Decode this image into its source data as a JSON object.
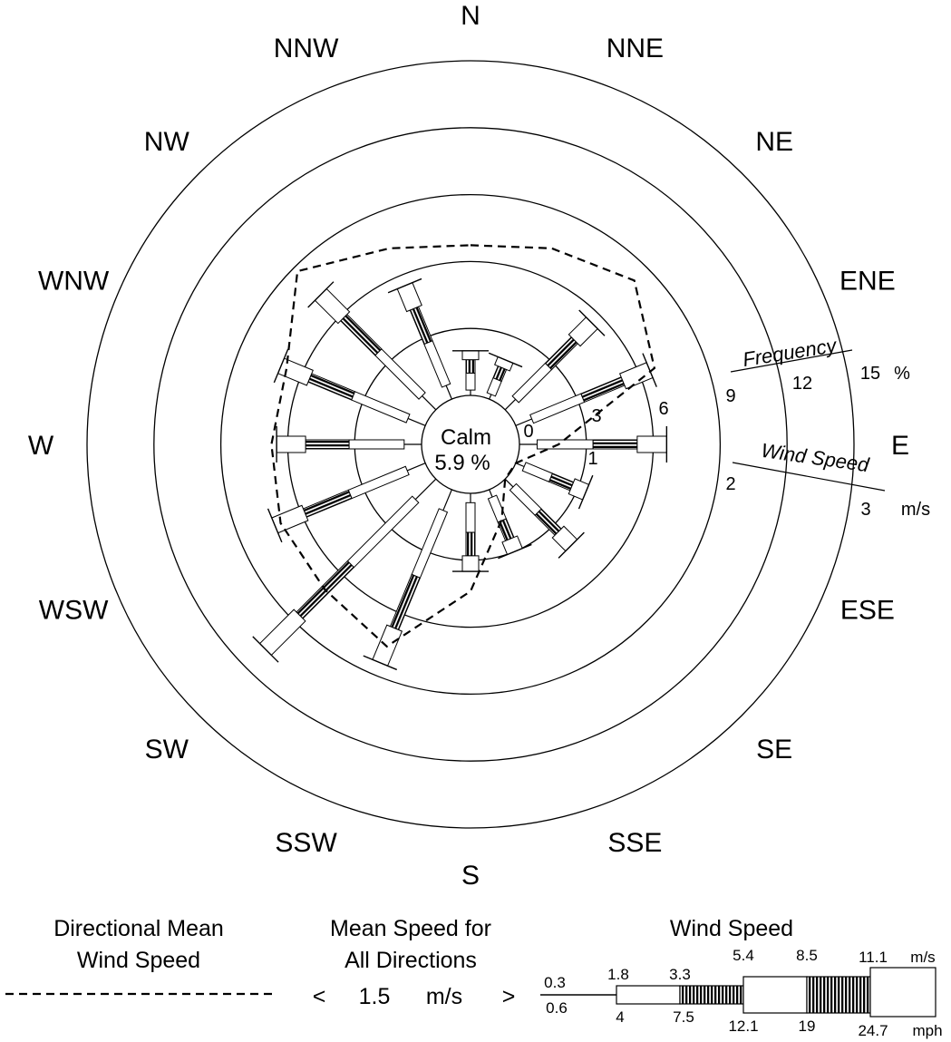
{
  "chart_data": {
    "type": "wind_rose",
    "directions": [
      "N",
      "NNE",
      "NE",
      "ENE",
      "E",
      "ESE",
      "SE",
      "SSE",
      "S",
      "SSW",
      "SW",
      "WSW",
      "W",
      "WNW",
      "NW",
      "NNW"
    ],
    "calm": {
      "label": "Calm",
      "value": "5.9 %"
    },
    "frequency_axis": {
      "title": "Frequency",
      "ticks": [
        "3",
        "6",
        "9",
        "12",
        "15"
      ],
      "unit": "%"
    },
    "wind_speed_axis": {
      "title": "Wind Speed",
      "ticks": [
        "0",
        "1",
        "2",
        "3"
      ],
      "unit": "m/s"
    },
    "frequency_percent": [
      2.0,
      1.9,
      5.5,
      6.5,
      6.6,
      3.4,
      4.2,
      3.0,
      3.5,
      8.4,
      10.8,
      7.3,
      6.5,
      7.0,
      7.3,
      5.5
    ],
    "mean_speed_m_s": [
      2.3,
      2.5,
      2.8,
      2.3,
      0.6,
      0.0,
      0.0,
      0.5,
      1.5,
      2.6,
      2.4,
      2.4,
      2.3,
      2.3,
      3.0,
      2.5
    ],
    "speed_classes_m_s": [
      0.3,
      1.8,
      3.3,
      5.4,
      8.5,
      11.1
    ],
    "speed_classes_mph": [
      0.6,
      4,
      7.5,
      12.1,
      19,
      24.7
    ],
    "legend": {
      "mean_line_title_1": "Directional Mean",
      "mean_line_title_2": "Wind Speed",
      "mean_all_title_1": "Mean Speed for",
      "mean_all_title_2": "All Directions",
      "mean_all_lt": "<",
      "mean_all_value": "1.5",
      "mean_all_unit": "m/s",
      "mean_all_gt": ">",
      "bars_title": "Wind Speed",
      "ms_labels": [
        "0.3",
        "1.8",
        "3.3",
        "5.4",
        "8.5",
        "11.1"
      ],
      "ms_unit": "m/s",
      "mph_labels": [
        "0.6",
        "4",
        "7.5",
        "12.1",
        "19",
        "24.7"
      ],
      "mph_unit": "mph"
    }
  }
}
